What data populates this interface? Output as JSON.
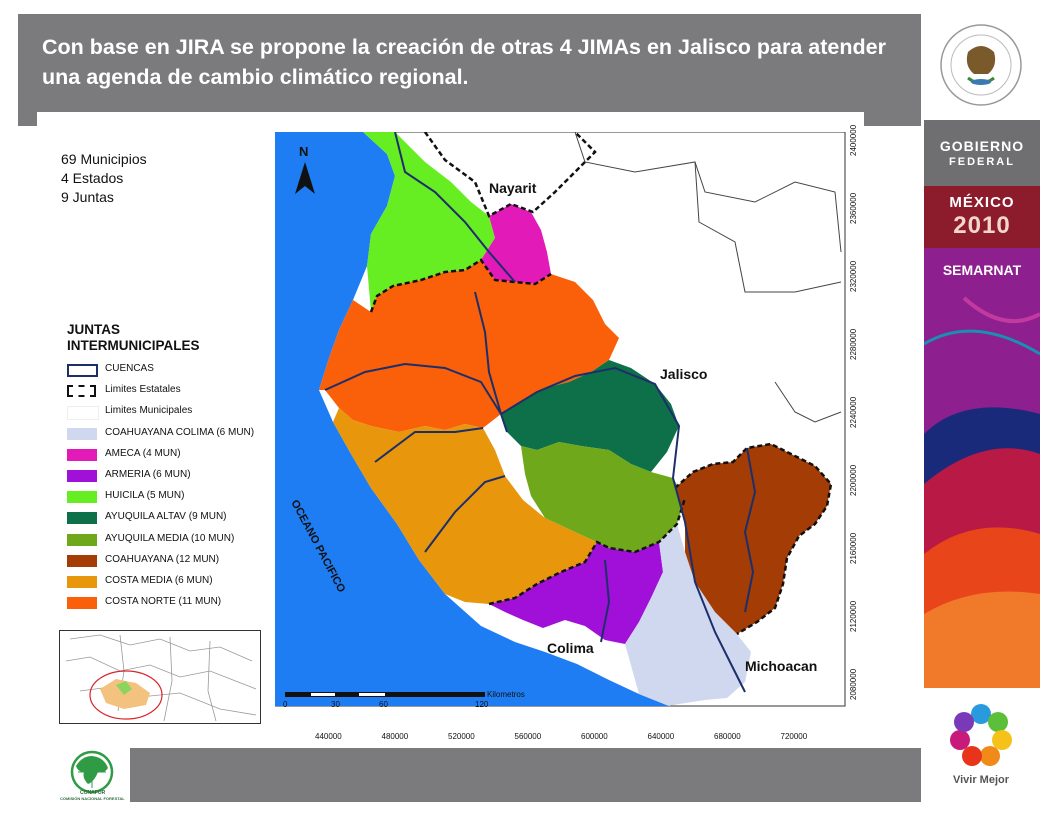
{
  "title": "Con base en JIRA se propone la creación de otras 4 JIMAs  en Jalisco para atender  una agenda de cambio climático regional.",
  "stats": [
    "69 Municipios",
    "4 Estados",
    "9 Juntas"
  ],
  "legend": {
    "title_line1": "JUNTAS",
    "title_line2": "INTERMUNICIPALES",
    "items": [
      {
        "label": "CUENCAS",
        "color": "#ffffff",
        "style": "cuencas"
      },
      {
        "label": "Limites Estatales",
        "color": "#ffffff",
        "style": "estatales"
      },
      {
        "label": "Limites Municipales",
        "color": "#ffffff",
        "style": "municipales"
      },
      {
        "label": "COAHUAYANA COLIMA (6 MUN)",
        "color": "#cfd8ee",
        "style": "fill"
      },
      {
        "label": "AMECA  (4 MUN)",
        "color": "#e21ab7",
        "style": "fill"
      },
      {
        "label": "ARMERIA (6 MUN)",
        "color": "#a010d8",
        "style": "fill"
      },
      {
        "label": "HUICILA (5 MUN)",
        "color": "#66ee22",
        "style": "fill"
      },
      {
        "label": "AYUQUILA ALTAV (9 MUN)",
        "color": "#0d7048",
        "style": "fill"
      },
      {
        "label": "AYUQUILA MEDIA (10 MUN)",
        "color": "#6fa81a",
        "style": "fill"
      },
      {
        "label": "COAHUAYANA (12 MUN)",
        "color": "#a33c05",
        "style": "fill"
      },
      {
        "label": "COSTA MEDIA (6 MUN)",
        "color": "#e8960c",
        "style": "fill"
      },
      {
        "label": "COSTA NORTE (11 MUN)",
        "color": "#fa5f0a",
        "style": "fill"
      }
    ]
  },
  "map_labels": {
    "nayarit": "Nayarit",
    "jalisco": "Jalisco",
    "colima": "Colima",
    "michoacan": "Michoacan",
    "ocean": "OCEANO PACIFICO",
    "north": "N"
  },
  "scale_bar": {
    "unit": "Kilometros",
    "ticks": [
      "0",
      "30",
      "60",
      "120"
    ]
  },
  "x_ticks": [
    "440000",
    "480000",
    "520000",
    "560000",
    "600000",
    "640000",
    "680000",
    "720000"
  ],
  "y_ticks": [
    "2400000",
    "2360000",
    "2320000",
    "2280000",
    "2240000",
    "2200000",
    "2160000",
    "2120000",
    "2080000"
  ],
  "sidebar": {
    "gobierno_line1": "GOBIERNO",
    "gobierno_line2": "FEDERAL",
    "mexico": "MÉXICO",
    "year": "2010",
    "semarnat": "SEMARNAT",
    "vivir_mejor": "Vivir Mejor"
  },
  "conafor": {
    "name": "CONAFOR",
    "full_name": "COMISIÓN NACIONAL FORESTAL"
  },
  "colors": {
    "header_gray": "#7b7b7d",
    "ocean": "#1e7df2",
    "gobierno_gray": "#6f6f71",
    "mexico2010_red": "#8c1c2b",
    "semarnat_purple": "#8e1f8e"
  }
}
